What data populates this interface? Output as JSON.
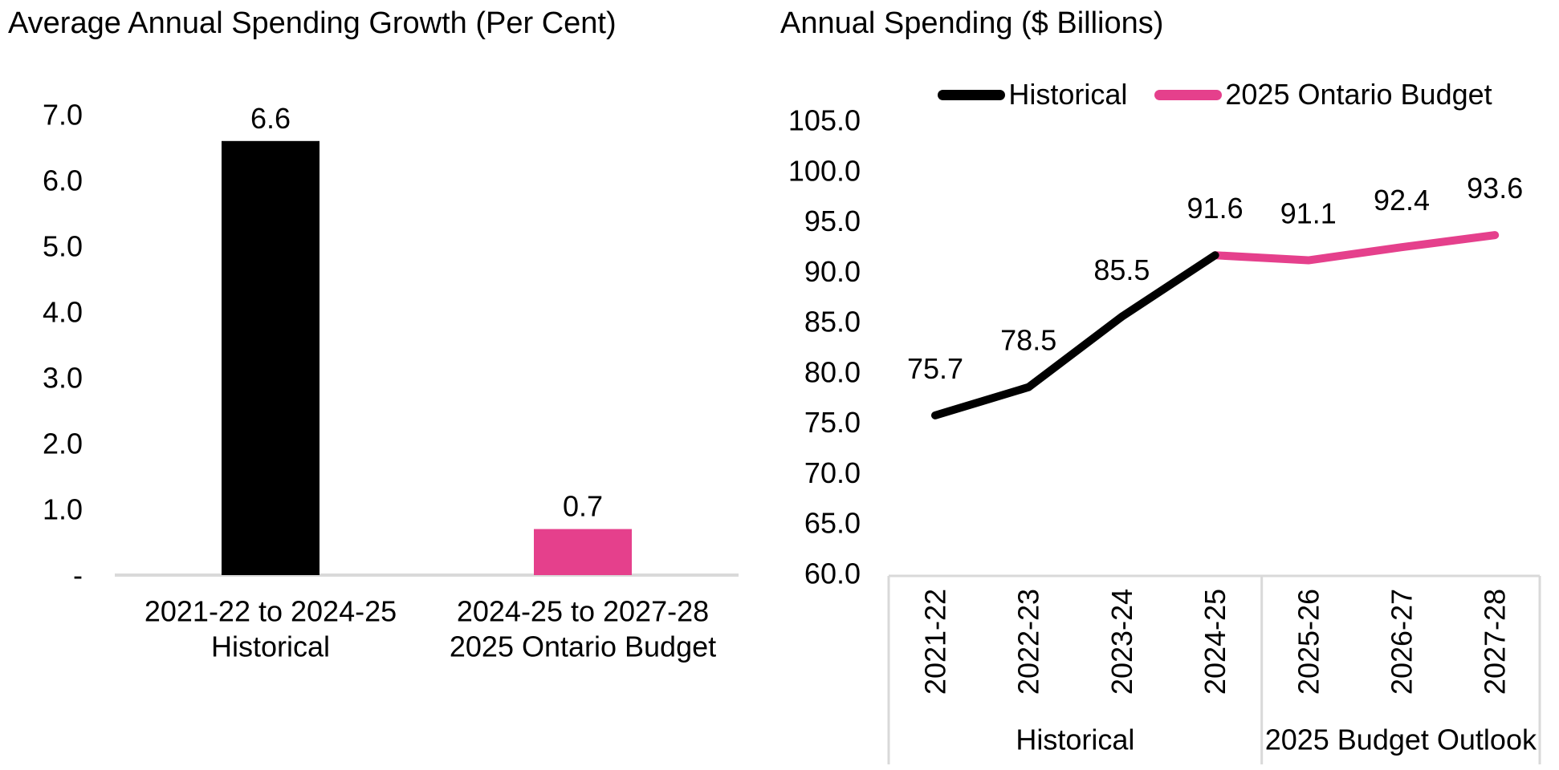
{
  "page": {
    "background_color": "#FFFFFF",
    "text_color": "#000000",
    "accent_pink": "#E5408C",
    "grid_gray": "#D9D9D9"
  },
  "chart_data": [
    {
      "type": "bar",
      "title": "Average Annual Spending Growth (Per Cent)",
      "categories": [
        "2021-22 to 2024-25 Historical",
        "2024-25 to 2027-28 2025 Ontario Budget"
      ],
      "category_lines": [
        [
          "2021-22 to 2024-25",
          "Historical"
        ],
        [
          "2024-25 to 2027-28",
          "2025 Ontario Budget"
        ]
      ],
      "values": [
        6.6,
        0.7
      ],
      "data_labels": [
        "6.6",
        "0.7"
      ],
      "bar_colors": [
        "#000000",
        "#E5408C"
      ],
      "xlabel": "",
      "ylabel": "",
      "ylim": [
        0,
        7
      ],
      "ytick_values": [
        7,
        6,
        5,
        4,
        3,
        2,
        1,
        0
      ],
      "ytick_labels": [
        "7.0",
        "6.0",
        "5.0",
        "4.0",
        "3.0",
        "2.0",
        "1.0",
        "-"
      ],
      "grid": false,
      "baseline_color": "#D9D9D9",
      "legend_position": "none"
    },
    {
      "type": "line",
      "title": "Annual Spending ($ Billions)",
      "x_categories": [
        "2021-22",
        "2022-23",
        "2023-24",
        "2024-25",
        "2025-26",
        "2026-27",
        "2027-28"
      ],
      "series": [
        {
          "name": "Historical",
          "color": "#000000",
          "start_index": 0,
          "values": [
            75.7,
            78.5,
            85.5,
            91.6
          ]
        },
        {
          "name": "2025 Ontario Budget",
          "color": "#E5408C",
          "start_index": 3,
          "values": [
            91.6,
            91.1,
            92.4,
            93.6
          ]
        }
      ],
      "data_labels": [
        "75.7",
        "78.5",
        "85.5",
        "91.6",
        "91.1",
        "92.4",
        "93.6"
      ],
      "xlabel": "",
      "ylabel": "",
      "ylim": [
        60,
        105
      ],
      "ytick_values": [
        105,
        100,
        95,
        90,
        85,
        80,
        75,
        70,
        65,
        60
      ],
      "ytick_labels": [
        "105.0",
        "100.0",
        "95.0",
        "90.0",
        "85.0",
        "80.0",
        "75.0",
        "70.0",
        "65.0",
        "60.0"
      ],
      "x_groups": [
        {
          "label": "Historical",
          "from": 0,
          "to": 3
        },
        {
          "label": "2025 Budget Outlook",
          "from": 4,
          "to": 6
        }
      ],
      "grid": false,
      "axis_table_color": "#D9D9D9",
      "legend_position": "top"
    }
  ]
}
